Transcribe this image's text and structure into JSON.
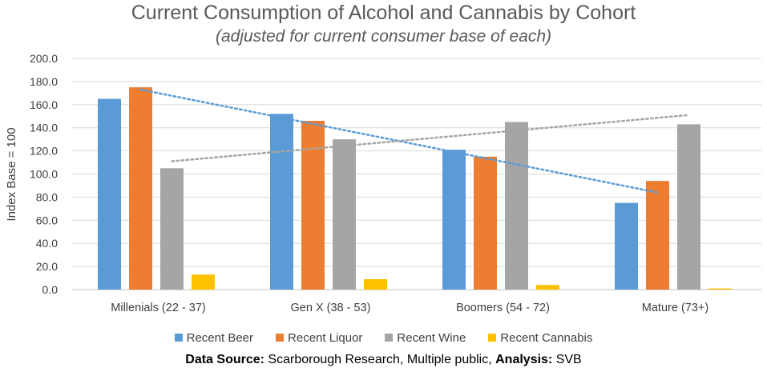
{
  "chart_data": {
    "type": "bar",
    "title": "Current Consumption of Alcohol and Cannabis by Cohort",
    "subtitle": "(adjusted for current consumer base of each)",
    "xlabel": "",
    "ylabel": "Index Base = 100",
    "ylim": [
      0,
      200
    ],
    "yticks": [
      "0.0",
      "20.0",
      "40.0",
      "60.0",
      "80.0",
      "100.0",
      "120.0",
      "140.0",
      "160.0",
      "180.0",
      "200.0"
    ],
    "ytick_values": [
      0,
      20,
      40,
      60,
      80,
      100,
      120,
      140,
      160,
      180,
      200
    ],
    "grid": true,
    "legend_position": "bottom",
    "categories": [
      "Millenials (22 - 37)",
      "Gen X (38 - 53)",
      "Boomers (54 - 72)",
      "Mature (73+)"
    ],
    "series": [
      {
        "name": "Recent Beer",
        "color": "#5B9BD5",
        "values": [
          165,
          152,
          121,
          75
        ]
      },
      {
        "name": "Recent Liquor",
        "color": "#ED7D31",
        "values": [
          175,
          146,
          115,
          94
        ]
      },
      {
        "name": "Recent Wine",
        "color": "#A5A5A5",
        "values": [
          105,
          130,
          145,
          143
        ]
      },
      {
        "name": "Recent Cannabis",
        "color": "#FFC000",
        "values": [
          13,
          9,
          4,
          1
        ]
      }
    ],
    "trendlines": [
      {
        "series": "Recent Liquor",
        "style": "dotted",
        "color": "#5B9BD5",
        "start": 173,
        "end": 84
      },
      {
        "series": "Recent Wine",
        "style": "dotted",
        "color": "#A5A5A5",
        "start": 111,
        "end": 151
      }
    ]
  },
  "source": {
    "label1": "Data Source:",
    "text1": " Scarborough Research, Multiple public, ",
    "label2": "Analysis:",
    "text2": " SVB"
  }
}
